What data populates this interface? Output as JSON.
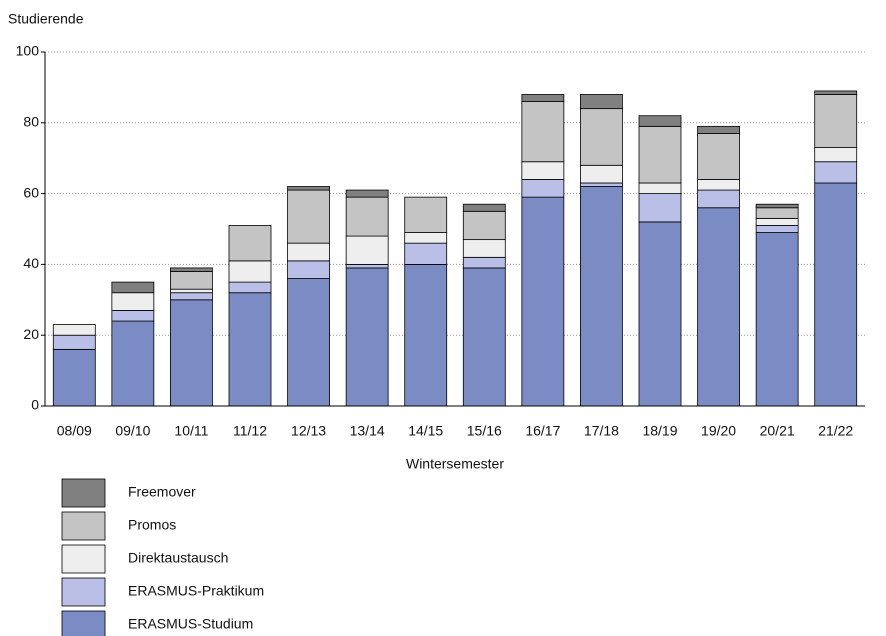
{
  "chart_data": {
    "type": "stacked_bar",
    "y_label": "Studierende",
    "x_label": "Wintersemester",
    "categories": [
      "08/09",
      "09/10",
      "10/11",
      "11/12",
      "12/13",
      "13/14",
      "14/15",
      "15/16",
      "16/17",
      "17/18",
      "18/19",
      "19/20",
      "20/21",
      "21/22"
    ],
    "series": [
      {
        "name": "ERASMUS-Studium",
        "color": "#7b8cc4",
        "values": [
          16,
          24,
          30,
          32,
          36,
          39,
          40,
          39,
          59,
          62,
          52,
          56,
          49,
          63
        ]
      },
      {
        "name": "ERASMUS-Praktikum",
        "color": "#b9bfe6",
        "values": [
          4,
          3,
          2,
          3,
          5,
          1,
          6,
          3,
          5,
          1,
          8,
          5,
          2,
          6
        ]
      },
      {
        "name": "Direktaustausch",
        "color": "#eeeeee",
        "values": [
          3,
          5,
          1,
          6,
          5,
          8,
          3,
          5,
          5,
          5,
          3,
          3,
          2,
          4
        ]
      },
      {
        "name": "Promos",
        "color": "#c4c4c4",
        "values": [
          0,
          0,
          5,
          10,
          15,
          11,
          10,
          8,
          17,
          16,
          16,
          13,
          3,
          15
        ]
      },
      {
        "name": "Freemover",
        "color": "#808080",
        "values": [
          0,
          3,
          1,
          0,
          1,
          2,
          0,
          2,
          2,
          4,
          3,
          2,
          1,
          1
        ]
      }
    ],
    "ylim": [
      0,
      100
    ],
    "yticks": [
      0,
      20,
      40,
      60,
      80,
      100
    ],
    "grid": true
  }
}
